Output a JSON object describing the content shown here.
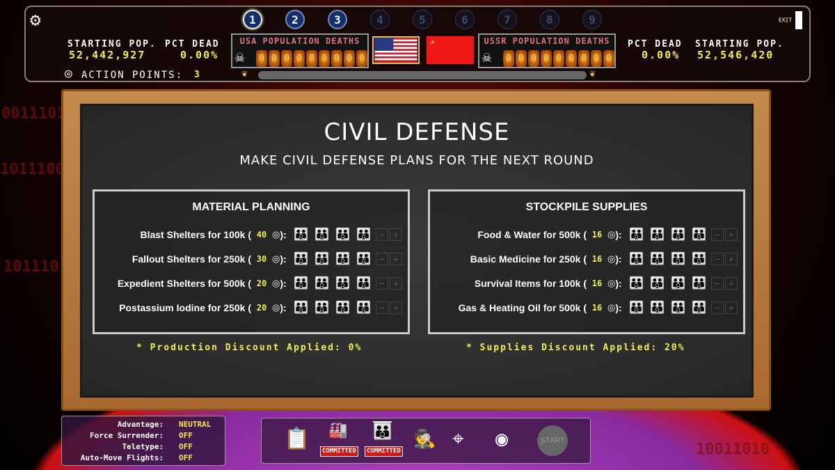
{
  "background_binary": [
    "10011010",
    "0011101",
    "1011100",
    "101110"
  ],
  "header": {
    "settings_icon": "gear-icon",
    "usa": {
      "starting_pop_label": "STARTING POP.",
      "starting_pop": "52,442,927",
      "pct_dead_label": "PCT DEAD",
      "pct_dead": "0.00%",
      "deaths_label": "USA POPULATION DEATHS",
      "deaths_digits": [
        "0",
        "0",
        "0",
        "0",
        "0",
        "0",
        "0",
        "0",
        "0"
      ]
    },
    "ussr": {
      "starting_pop_label": "STARTING POP.",
      "starting_pop": "52,546,420",
      "pct_dead_label": "PCT DEAD",
      "pct_dead": "0.00%",
      "deaths_label": "USSR POPULATION DEATHS",
      "deaths_digits": [
        "0",
        "0",
        "0",
        "0",
        "0",
        "0",
        "0",
        "0",
        "0"
      ]
    },
    "rounds": [
      "1",
      "2",
      "3",
      "4",
      "5",
      "6",
      "7",
      "8",
      "9"
    ],
    "current_round": 1,
    "completed_rounds": 3,
    "action_points_label": "ACTION POINTS:",
    "action_points": "3",
    "exit_label": "EXIT",
    "progress": 0
  },
  "board": {
    "title": "CIVIL DEFENSE",
    "subtitle": "MAKE CIVIL DEFENSE PLANS FOR THE NEXT ROUND",
    "material": {
      "title": "MATERIAL PLANNING",
      "discount": "* Production Discount Applied: 0%",
      "items": [
        {
          "name": "Blast Shelters for 100k (",
          "cost": "40",
          "level": 2
        },
        {
          "name": "Fallout Shelters for 250k (",
          "cost": "30",
          "level": 1
        },
        {
          "name": "Expedient Shelters for 500k (",
          "cost": "20",
          "level": 1
        },
        {
          "name": "Postassium Iodine for 250k (",
          "cost": "20",
          "level": 1
        }
      ]
    },
    "supplies": {
      "title": "STOCKPILE SUPPLIES",
      "discount": "* Supplies Discount Applied: 20%",
      "items": [
        {
          "name": "Food & Water for 500k (",
          "cost": "16",
          "level": 2
        },
        {
          "name": "Basic Medicine for 250k (",
          "cost": "16",
          "level": 1
        },
        {
          "name": "Survival Items for 100k (",
          "cost": "16",
          "level": 1
        },
        {
          "name": "Gas & Heating Oil for 500k (",
          "cost": "16",
          "level": 1
        }
      ]
    },
    "max_level": 4
  },
  "status": [
    {
      "label": "Advantage:",
      "value": "NEUTRAL"
    },
    {
      "label": "Force Surrender:",
      "value": "OFF"
    },
    {
      "label": "Teletype:",
      "value": "OFF"
    },
    {
      "label": "Auto-Move Flights:",
      "value": "OFF"
    }
  ],
  "toolbar": {
    "committed_label": "COMMITTED",
    "start_label": "START"
  }
}
